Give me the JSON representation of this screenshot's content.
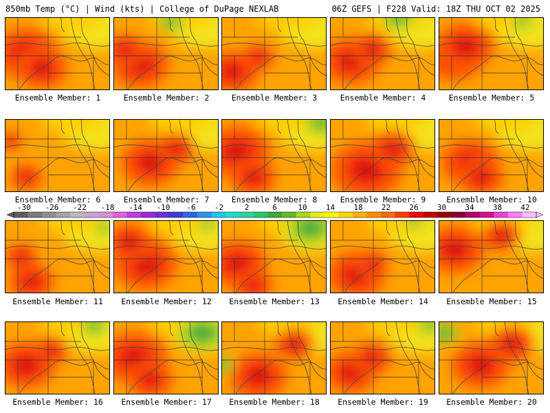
{
  "header": {
    "left": "850mb Temp (°C) | Wind (kts) | College of DuPage NEXLAB",
    "right": "06Z GEFS | F228 Valid: 18Z THU OCT 02 2025"
  },
  "members": [
    {
      "label": "Ensemble Member: 1",
      "hot": [
        [
          0.2,
          0.5,
          1.0
        ],
        [
          0.35,
          0.7,
          0.8
        ]
      ],
      "cool": []
    },
    {
      "label": "Ensemble Member: 2",
      "hot": [
        [
          0.25,
          0.65,
          0.9
        ],
        [
          0.1,
          0.45,
          0.6
        ]
      ],
      "cool": [
        [
          0.55,
          0.05,
          0.5
        ]
      ]
    },
    {
      "label": "Ensemble Member: 3",
      "hot": [
        [
          0.1,
          0.75,
          0.8
        ],
        [
          0.35,
          0.55,
          0.5
        ]
      ],
      "cool": []
    },
    {
      "label": "Ensemble Member: 4",
      "hot": [
        [
          0.2,
          0.6,
          0.9
        ],
        [
          0.4,
          0.45,
          0.6
        ]
      ],
      "cool": [
        [
          0.65,
          0.0,
          0.6
        ]
      ]
    },
    {
      "label": "Ensemble Member: 5",
      "hot": [
        [
          0.15,
          0.55,
          0.9
        ],
        [
          0.25,
          0.4,
          0.9
        ]
      ],
      "cool": [
        [
          0.8,
          0.05,
          0.4
        ]
      ]
    },
    {
      "label": "Ensemble Member: 6",
      "hot": [
        [
          0.2,
          0.8,
          0.5
        ],
        [
          0.05,
          0.3,
          0.35
        ]
      ],
      "cool": []
    },
    {
      "label": "Ensemble Member: 7",
      "hot": [
        [
          0.35,
          0.6,
          0.9
        ],
        [
          0.6,
          0.4,
          0.6
        ]
      ],
      "cool": []
    },
    {
      "label": "Ensemble Member: 8",
      "hot": [
        [
          0.15,
          0.45,
          1.0
        ],
        [
          0.3,
          0.8,
          0.7
        ]
      ],
      "cool": [
        [
          0.95,
          0.05,
          0.6
        ]
      ]
    },
    {
      "label": "Ensemble Member: 9",
      "hot": [
        [
          0.35,
          0.7,
          1.1
        ],
        [
          0.6,
          0.4,
          0.7
        ]
      ],
      "cool": []
    },
    {
      "label": "Ensemble Member: 10",
      "hot": [
        [
          0.3,
          0.6,
          0.9
        ],
        [
          0.4,
          0.8,
          0.7
        ]
      ],
      "cool": []
    },
    {
      "label": "Ensemble Member: 11",
      "hot": [
        [
          0.25,
          0.85,
          0.7
        ],
        [
          0.15,
          0.5,
          0.5
        ]
      ],
      "cool": [
        [
          0.95,
          0.1,
          0.35
        ]
      ]
    },
    {
      "label": "Ensemble Member: 12",
      "hot": [
        [
          0.3,
          0.6,
          1.0
        ],
        [
          0.15,
          0.3,
          0.7
        ]
      ],
      "cool": [
        [
          0.9,
          0.05,
          0.35
        ]
      ]
    },
    {
      "label": "Ensemble Member: 13",
      "hot": [
        [
          0.15,
          0.6,
          0.9
        ],
        [
          0.3,
          0.9,
          0.6
        ]
      ],
      "cool": [
        [
          0.85,
          0.1,
          0.9
        ]
      ]
    },
    {
      "label": "Ensemble Member: 14",
      "hot": [
        [
          0.25,
          0.75,
          0.9
        ],
        [
          0.4,
          0.6,
          0.5
        ]
      ],
      "cool": [
        [
          0.8,
          0.0,
          0.35
        ]
      ]
    },
    {
      "label": "Ensemble Member: 15",
      "hot": [
        [
          0.15,
          0.4,
          0.9
        ],
        [
          0.6,
          0.2,
          0.6
        ]
      ],
      "cool": []
    },
    {
      "label": "Ensemble Member: 16",
      "hot": [
        [
          0.2,
          0.6,
          0.9
        ],
        [
          0.45,
          0.4,
          0.5
        ]
      ],
      "cool": [
        [
          0.85,
          0.05,
          0.5
        ]
      ]
    },
    {
      "label": "Ensemble Member: 17",
      "hot": [
        [
          0.2,
          0.5,
          1.0
        ],
        [
          0.35,
          0.8,
          0.7
        ]
      ],
      "cool": [
        [
          0.85,
          0.15,
          0.9
        ]
      ]
    },
    {
      "label": "Ensemble Member: 18",
      "hot": [
        [
          0.35,
          0.75,
          0.9
        ],
        [
          0.7,
          0.3,
          0.6
        ]
      ],
      "cool": [
        [
          0.0,
          0.6,
          0.45
        ]
      ]
    },
    {
      "label": "Ensemble Member: 19",
      "hot": [
        [
          0.2,
          0.7,
          0.8
        ],
        [
          0.4,
          0.5,
          0.6
        ]
      ],
      "cool": [
        [
          0.95,
          0.05,
          0.45
        ]
      ]
    },
    {
      "label": "Ensemble Member: 20",
      "hot": [
        [
          0.4,
          0.6,
          0.9
        ],
        [
          0.7,
          0.3,
          0.7
        ]
      ],
      "cool": [
        [
          0.05,
          0.15,
          0.55
        ]
      ]
    }
  ],
  "colorbar": {
    "ticks": [
      "-30",
      "-26",
      "-22",
      "-18",
      "-14",
      "-10",
      "-6",
      "-2",
      "2",
      "6",
      "10",
      "14",
      "18",
      "22",
      "26",
      "30",
      "34",
      "38",
      "42"
    ],
    "colors": [
      "#5f5f5f",
      "#7a7a7a",
      "#8f8f8f",
      "#a4a4a4",
      "#b9b9b9",
      "#c9a6cf",
      "#d98fd9",
      "#e35fe3",
      "#c13ce0",
      "#9a2ad6",
      "#6a2fd6",
      "#3c3cd8",
      "#2a66e6",
      "#2a95ee",
      "#22c6ee",
      "#22dcc8",
      "#2ad49a",
      "#2cc46c",
      "#3caa3c",
      "#67bb2a",
      "#a9d81a",
      "#e6ef10",
      "#ffff00",
      "#ffd700",
      "#ffb000",
      "#ff8c00",
      "#ff6a00",
      "#ff3c00",
      "#e80a0a",
      "#c40000",
      "#9a0000",
      "#8a0033",
      "#b00066",
      "#d4108f",
      "#ee40d4",
      "#ff80ff",
      "#ffc0ff"
    ]
  }
}
